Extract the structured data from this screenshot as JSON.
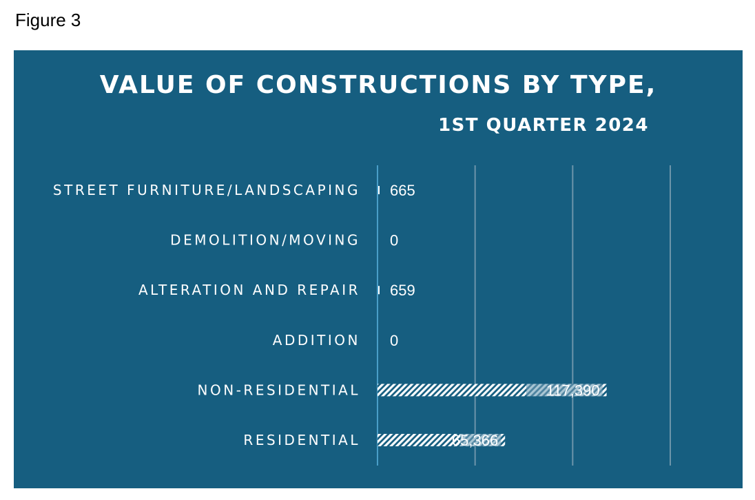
{
  "figure_label": "Figure 3",
  "chart_data": {
    "type": "bar",
    "orientation": "horizontal",
    "title": "VALUE OF CONSTRUCTIONS BY TYPE,",
    "subtitle": "1ST QUARTER 2024",
    "categories": [
      "STREET FURNITURE/LANDSCAPING",
      "DEMOLITION/MOVING",
      "ALTERATION AND REPAIR",
      "ADDITION",
      "NON-RESIDENTIAL",
      "RESIDENTIAL"
    ],
    "values": [
      665,
      0,
      659,
      0,
      117390,
      65366
    ],
    "value_labels": [
      "665",
      "0",
      "659",
      "0",
      "117,390",
      "65,366"
    ],
    "xlim": [
      0,
      150000
    ],
    "gridlines": [
      50000,
      100000,
      150000
    ],
    "grid": true,
    "legend": "none",
    "colors": {
      "background": "#165e80",
      "bar": "#ffffff",
      "bar_alt": "#8fb2c4",
      "axis": "#5ab4e0",
      "grid": "#6d95aa"
    }
  }
}
